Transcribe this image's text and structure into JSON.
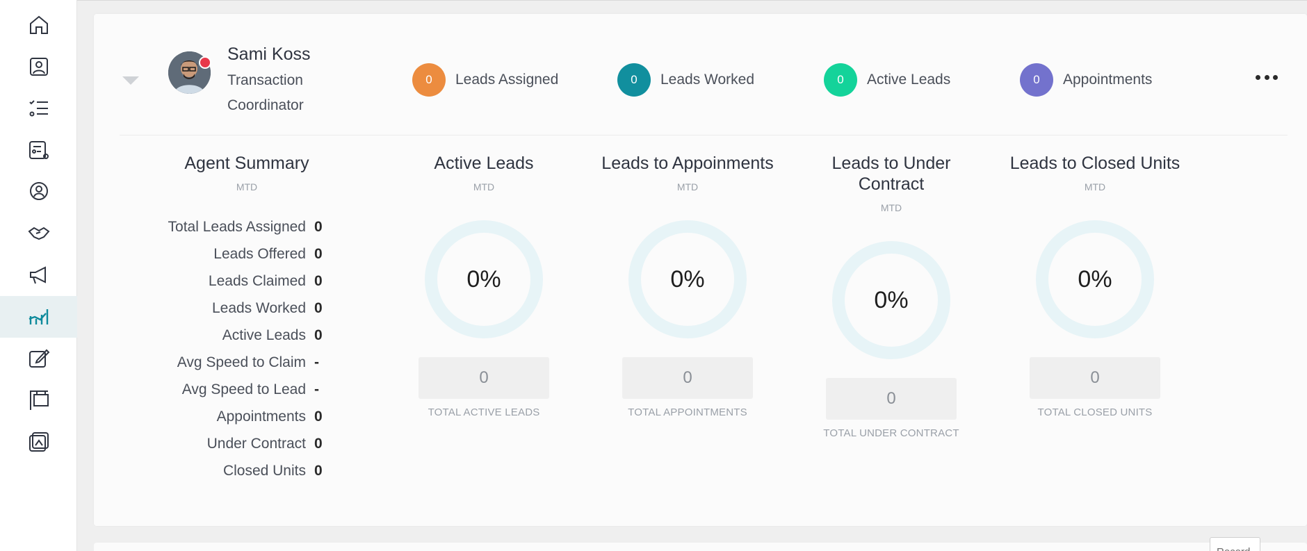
{
  "sidebar": {
    "items": [
      {
        "icon": "home-icon",
        "active": false
      },
      {
        "icon": "contact-card-icon",
        "active": false
      },
      {
        "icon": "checklist-icon",
        "active": false
      },
      {
        "icon": "task-settings-icon",
        "active": false
      },
      {
        "icon": "user-location-icon",
        "active": false
      },
      {
        "icon": "handshake-icon",
        "active": false
      },
      {
        "icon": "megaphone-icon",
        "active": false
      },
      {
        "icon": "analytics-icon",
        "active": true
      },
      {
        "icon": "edit-icon",
        "active": false
      },
      {
        "icon": "sign-post-icon",
        "active": false
      },
      {
        "icon": "gallery-icon",
        "active": false
      }
    ],
    "accent": "#0e8a9c"
  },
  "agent": {
    "name": "Sami Koss",
    "role": "Transaction Coordinator"
  },
  "header_stats": [
    {
      "count": "0",
      "label": "Leads Assigned",
      "color": "#ec8c3f"
    },
    {
      "count": "0",
      "label": "Leads Worked",
      "color": "#118f9e"
    },
    {
      "count": "0",
      "label": "Active Leads",
      "color": "#14d39a"
    },
    {
      "count": "0",
      "label": "Appointments",
      "color": "#7372cd"
    }
  ],
  "summary": {
    "title": "Agent Summary",
    "period": "MTD",
    "rows": [
      {
        "label": "Total Leads Assigned",
        "value": "0"
      },
      {
        "label": "Leads Offered",
        "value": "0"
      },
      {
        "label": "Leads Claimed",
        "value": "0"
      },
      {
        "label": "Leads Worked",
        "value": "0"
      },
      {
        "label": "Active Leads",
        "value": "0"
      },
      {
        "label": "Avg Speed to Claim",
        "value": "-"
      },
      {
        "label": "Avg Speed to Lead",
        "value": "-"
      },
      {
        "label": "Appointments",
        "value": "0"
      },
      {
        "label": "Under Contract",
        "value": "0"
      },
      {
        "label": "Closed Units",
        "value": "0"
      }
    ]
  },
  "metrics": [
    {
      "title": "Active Leads",
      "period": "MTD",
      "percent": "0%",
      "total": "0",
      "total_label": "TOTAL ACTIVE LEADS"
    },
    {
      "title": "Leads to Appoinments",
      "period": "MTD",
      "percent": "0%",
      "total": "0",
      "total_label": "TOTAL APPOINTMENTS"
    },
    {
      "title": "Leads to Under Contract",
      "period": "MTD",
      "percent": "0%",
      "total": "0",
      "total_label": "TOTAL UNDER CONTRACT"
    },
    {
      "title": "Leads to Closed Units",
      "period": "MTD",
      "percent": "0%",
      "total": "0",
      "total_label": "TOTAL CLOSED UNITS"
    }
  ],
  "footer": {
    "record_button": "Record"
  }
}
